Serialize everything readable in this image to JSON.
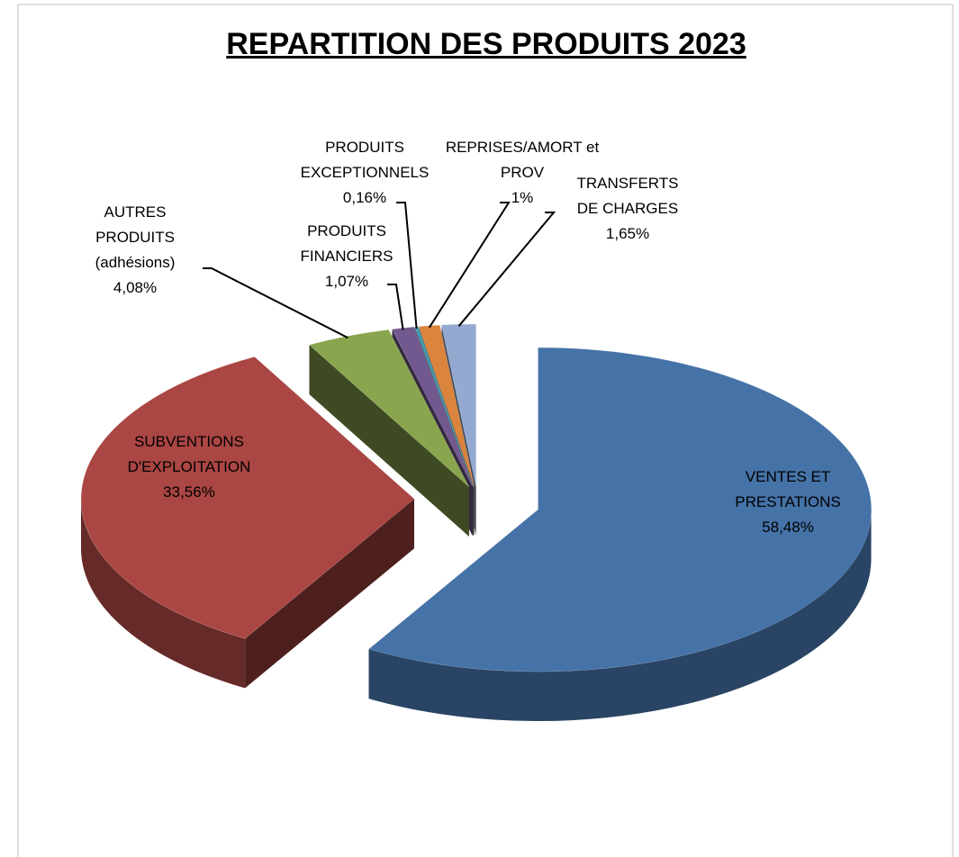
{
  "chart_data": {
    "type": "pie",
    "title": "REPARTITION DES PRODUITS 2023",
    "categories": [
      "VENTES ET PRESTATIONS",
      "SUBVENTIONS D'EXPLOITATION",
      "AUTRES PRODUITS (adhésions)",
      "PRODUITS FINANCIERS",
      "PRODUITS EXCEPTIONNELS",
      "REPRISES/AMORT et PROV",
      "TRANSFERTS DE CHARGES"
    ],
    "values": [
      58.48,
      33.56,
      4.08,
      1.07,
      0.16,
      1,
      1.65
    ],
    "value_labels": [
      "58,48%",
      "33,56%",
      "4,08%",
      "1,07%",
      "0,16%",
      "1%",
      "1,65%"
    ],
    "colors": [
      "#4572a7",
      "#aa4643",
      "#89a54e",
      "#71588f",
      "#4198af",
      "#db843d",
      "#93a9cf"
    ]
  }
}
